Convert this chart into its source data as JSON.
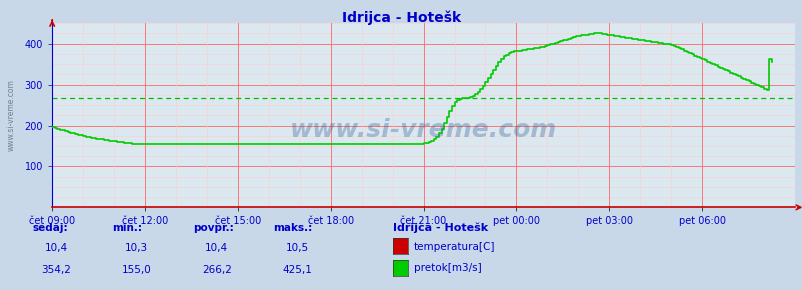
{
  "title": "Idrijca - Hotešk",
  "title_color": "#0000cc",
  "bg_color": "#c8d8e8",
  "plot_bg_color": "#dce8f0",
  "bottom_bg_color": "#ffffff",
  "grid_color_major_h": "#ff6666",
  "grid_color_minor_h": "#ffcccc",
  "grid_color_major_v": "#ff6666",
  "grid_color_minor_v": "#ffcccc",
  "avg_line_color": "#00bb00",
  "avg_value": 266.2,
  "xlim_start": 0,
  "xlim_end": 288,
  "ylim": [
    0,
    450
  ],
  "yticks_major": [
    100,
    200,
    300,
    400
  ],
  "yticks_minor": [
    50,
    150,
    250,
    350,
    450
  ],
  "xtick_labels": [
    "čet 09:00",
    "čet 12:00",
    "čet 15:00",
    "čet 18:00",
    "čet 21:00",
    "pet 00:00",
    "pet 03:00",
    "pet 06:00"
  ],
  "xtick_positions": [
    0,
    36,
    72,
    108,
    144,
    180,
    216,
    252
  ],
  "watermark": "www.si-vreme.com",
  "watermark_color": "#336699",
  "watermark_alpha": 0.35,
  "line_color": "#00cc00",
  "line_width": 1.2,
  "spine_color": "#0000cc",
  "axis_arrow_color": "#cc0000",
  "tick_color": "#0000cc",
  "tick_label_color": "#0000cc",
  "bottom_labels": {
    "col_headers": [
      "sedaj:",
      "min.:",
      "povpr.:",
      "maks.:"
    ],
    "row1_vals": [
      "10,4",
      "10,3",
      "10,4",
      "10,5"
    ],
    "row2_vals": [
      "354,2",
      "155,0",
      "266,2",
      "425,1"
    ],
    "legend_title": "Idrijca - Hotešk",
    "legend_items": [
      {
        "color": "#cc0000",
        "label": "temperatura[C]"
      },
      {
        "color": "#00cc00",
        "label": "pretok[m3/s]"
      }
    ]
  },
  "flow_data": [
    196,
    194,
    192,
    190,
    188,
    186,
    184,
    182,
    181,
    179,
    177,
    176,
    174,
    173,
    171,
    170,
    169,
    168,
    167,
    166,
    165,
    164,
    163,
    162,
    161,
    160,
    160,
    159,
    158,
    158,
    157,
    156,
    156,
    155,
    155,
    155,
    155,
    155,
    155,
    155,
    155,
    155,
    155,
    155,
    155,
    155,
    155,
    155,
    155,
    155,
    155,
    155,
    155,
    155,
    155,
    155,
    155,
    155,
    155,
    155,
    155,
    155,
    155,
    155,
    155,
    155,
    155,
    155,
    155,
    155,
    155,
    155,
    155,
    155,
    155,
    155,
    155,
    155,
    155,
    155,
    155,
    155,
    155,
    155,
    155,
    155,
    155,
    155,
    155,
    155,
    155,
    155,
    155,
    155,
    155,
    155,
    155,
    155,
    155,
    155,
    155,
    155,
    155,
    155,
    155,
    155,
    155,
    155,
    155,
    155,
    155,
    155,
    155,
    155,
    155,
    155,
    155,
    155,
    155,
    155,
    155,
    155,
    155,
    155,
    155,
    155,
    155,
    155,
    155,
    155,
    155,
    155,
    155,
    155,
    155,
    155,
    155,
    155,
    155,
    155,
    155,
    155,
    155,
    156,
    157,
    158,
    160,
    163,
    167,
    173,
    181,
    192,
    207,
    222,
    236,
    248,
    257,
    262,
    264,
    266,
    267,
    268,
    270,
    273,
    276,
    281,
    288,
    296,
    306,
    316,
    326,
    336,
    346,
    356,
    363,
    369,
    373,
    376,
    379,
    381,
    382,
    383,
    384,
    385,
    386,
    387,
    388,
    389,
    390,
    391,
    392,
    394,
    396,
    398,
    400,
    402,
    404,
    406,
    408,
    410,
    412,
    414,
    416,
    418,
    419,
    420,
    421,
    422,
    423,
    424,
    425,
    425,
    425,
    424,
    423,
    422,
    421,
    420,
    419,
    418,
    417,
    416,
    415,
    414,
    413,
    412,
    411,
    410,
    409,
    408,
    407,
    406,
    405,
    404,
    403,
    402,
    401,
    400,
    399,
    398,
    396,
    394,
    392,
    389,
    386,
    383,
    380,
    377,
    374,
    371,
    368,
    365,
    362,
    359,
    356,
    353,
    350,
    347,
    344,
    341,
    338,
    335,
    332,
    329,
    326,
    323,
    320,
    317,
    314,
    311,
    308,
    305,
    302,
    299,
    296,
    293,
    290,
    287,
    363,
    354
  ]
}
